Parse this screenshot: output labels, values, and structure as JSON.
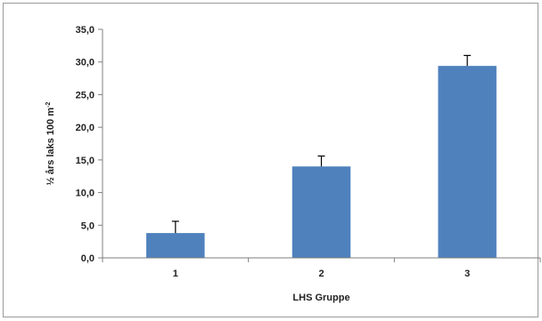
{
  "chart_data": {
    "type": "bar",
    "categories": [
      "1",
      "2",
      "3"
    ],
    "values": [
      3.8,
      14.0,
      29.4
    ],
    "error_upper": [
      5.6,
      15.6,
      31.0
    ],
    "xlabel": "LHS Gruppe",
    "ylabel_main": "½ års laks 100 m",
    "ylabel_sup": "-2",
    "ylim": [
      0,
      35
    ],
    "yticks": [
      "0,0",
      "5,0",
      "10,0",
      "15,0",
      "20,0",
      "25,0",
      "30,0",
      "35,0"
    ],
    "grid": false,
    "legend": "none",
    "bar_color": "#4f81bd"
  }
}
